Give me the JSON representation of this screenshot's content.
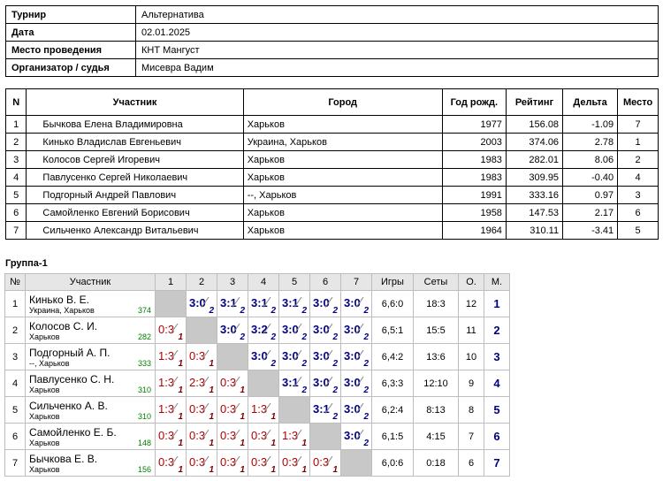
{
  "info": [
    {
      "label": "Турнир",
      "value": "Альтернатива"
    },
    {
      "label": "Дата",
      "value": "02.01.2025"
    },
    {
      "label": "Место проведения",
      "value": "КНТ Мангуст"
    },
    {
      "label": "Организатор / судья",
      "value": "Мисевра Вадим"
    }
  ],
  "plist_headers": [
    "N",
    "Участник",
    "Город",
    "Год рожд.",
    "Рейтинг",
    "Дельта",
    "Место"
  ],
  "plist": [
    {
      "n": "1",
      "name": "Бычкова Елена Владимировна",
      "city": "Харьков",
      "year": "1977",
      "rating": "156.08",
      "delta": "-1.09",
      "place": "7"
    },
    {
      "n": "2",
      "name": "Кинько Владислав Евгеньевич",
      "city": "Украина, Харьков",
      "year": "2003",
      "rating": "374.06",
      "delta": "2.78",
      "place": "1"
    },
    {
      "n": "3",
      "name": "Колосов Сергей Игоревич",
      "city": "Харьков",
      "year": "1983",
      "rating": "282.01",
      "delta": "8.06",
      "place": "2"
    },
    {
      "n": "4",
      "name": "Павлусенко Сергей Николаевич",
      "city": "Харьков",
      "year": "1983",
      "rating": "309.95",
      "delta": "-0.40",
      "place": "4"
    },
    {
      "n": "5",
      "name": "Подгорный Андрей Павлович",
      "city": "--, Харьков",
      "year": "1991",
      "rating": "333.16",
      "delta": "0.97",
      "place": "3"
    },
    {
      "n": "6",
      "name": "Самойленко Евгений Борисович",
      "city": "Харьков",
      "year": "1958",
      "rating": "147.53",
      "delta": "2.17",
      "place": "6"
    },
    {
      "n": "7",
      "name": "Сильченко Александр Витальевич",
      "city": "Харьков",
      "year": "1964",
      "rating": "310.11",
      "delta": "-3.41",
      "place": "5"
    }
  ],
  "group": {
    "title": "Группа-1",
    "headers": [
      "№",
      "Участник",
      "1",
      "2",
      "3",
      "4",
      "5",
      "6",
      "7",
      "Игры",
      "Сеты",
      "О.",
      "М."
    ],
    "rows": [
      {
        "n": "1",
        "name": "Кинько В. Е.",
        "city": "Украина, Харьков",
        "rating": "374",
        "cells": [
          null,
          {
            "s": "3:0",
            "p": "2",
            "r": "win"
          },
          {
            "s": "3:1",
            "p": "2",
            "r": "win"
          },
          {
            "s": "3:1",
            "p": "2",
            "r": "win"
          },
          {
            "s": "3:1",
            "p": "2",
            "r": "win"
          },
          {
            "s": "3:0",
            "p": "2",
            "r": "win"
          },
          {
            "s": "3:0",
            "p": "2",
            "r": "win"
          }
        ],
        "games": "6,6:0",
        "sets": "18:3",
        "pts": "12",
        "place": "1"
      },
      {
        "n": "2",
        "name": "Колосов С. И.",
        "city": "Харьков",
        "rating": "282",
        "cells": [
          {
            "s": "0:3",
            "p": "1",
            "r": "loss"
          },
          null,
          {
            "s": "3:0",
            "p": "2",
            "r": "win"
          },
          {
            "s": "3:2",
            "p": "2",
            "r": "win"
          },
          {
            "s": "3:0",
            "p": "2",
            "r": "win"
          },
          {
            "s": "3:0",
            "p": "2",
            "r": "win"
          },
          {
            "s": "3:0",
            "p": "2",
            "r": "win"
          }
        ],
        "games": "6,5:1",
        "sets": "15:5",
        "pts": "11",
        "place": "2"
      },
      {
        "n": "3",
        "name": "Подгорный А. П.",
        "city": "--, Харьков",
        "rating": "333",
        "cells": [
          {
            "s": "1:3",
            "p": "1",
            "r": "loss"
          },
          {
            "s": "0:3",
            "p": "1",
            "r": "loss"
          },
          null,
          {
            "s": "3:0",
            "p": "2",
            "r": "win"
          },
          {
            "s": "3:0",
            "p": "2",
            "r": "win"
          },
          {
            "s": "3:0",
            "p": "2",
            "r": "win"
          },
          {
            "s": "3:0",
            "p": "2",
            "r": "win"
          }
        ],
        "games": "6,4:2",
        "sets": "13:6",
        "pts": "10",
        "place": "3"
      },
      {
        "n": "4",
        "name": "Павлусенко С. Н.",
        "city": "Харьков",
        "rating": "310",
        "cells": [
          {
            "s": "1:3",
            "p": "1",
            "r": "loss"
          },
          {
            "s": "2:3",
            "p": "1",
            "r": "loss"
          },
          {
            "s": "0:3",
            "p": "1",
            "r": "loss"
          },
          null,
          {
            "s": "3:1",
            "p": "2",
            "r": "win"
          },
          {
            "s": "3:0",
            "p": "2",
            "r": "win"
          },
          {
            "s": "3:0",
            "p": "2",
            "r": "win"
          }
        ],
        "games": "6,3:3",
        "sets": "12:10",
        "pts": "9",
        "place": "4"
      },
      {
        "n": "5",
        "name": "Сильченко А. В.",
        "city": "Харьков",
        "rating": "310",
        "cells": [
          {
            "s": "1:3",
            "p": "1",
            "r": "loss"
          },
          {
            "s": "0:3",
            "p": "1",
            "r": "loss"
          },
          {
            "s": "0:3",
            "p": "1",
            "r": "loss"
          },
          {
            "s": "1:3",
            "p": "1",
            "r": "loss"
          },
          null,
          {
            "s": "3:1",
            "p": "2",
            "r": "win"
          },
          {
            "s": "3:0",
            "p": "2",
            "r": "win"
          }
        ],
        "games": "6,2:4",
        "sets": "8:13",
        "pts": "8",
        "place": "5"
      },
      {
        "n": "6",
        "name": "Самойленко Е. Б.",
        "city": "Харьков",
        "rating": "148",
        "cells": [
          {
            "s": "0:3",
            "p": "1",
            "r": "loss"
          },
          {
            "s": "0:3",
            "p": "1",
            "r": "loss"
          },
          {
            "s": "0:3",
            "p": "1",
            "r": "loss"
          },
          {
            "s": "0:3",
            "p": "1",
            "r": "loss"
          },
          {
            "s": "1:3",
            "p": "1",
            "r": "loss"
          },
          null,
          {
            "s": "3:0",
            "p": "2",
            "r": "win"
          }
        ],
        "games": "6,1:5",
        "sets": "4:15",
        "pts": "7",
        "place": "6"
      },
      {
        "n": "7",
        "name": "Бычкова Е. В.",
        "city": "Харьков",
        "rating": "156",
        "cells": [
          {
            "s": "0:3",
            "p": "1",
            "r": "loss"
          },
          {
            "s": "0:3",
            "p": "1",
            "r": "loss"
          },
          {
            "s": "0:3",
            "p": "1",
            "r": "loss"
          },
          {
            "s": "0:3",
            "p": "1",
            "r": "loss"
          },
          {
            "s": "0:3",
            "p": "1",
            "r": "loss"
          },
          {
            "s": "0:3",
            "p": "1",
            "r": "loss"
          },
          null
        ],
        "games": "6,0:6",
        "sets": "0:18",
        "pts": "6",
        "place": "7"
      }
    ]
  }
}
